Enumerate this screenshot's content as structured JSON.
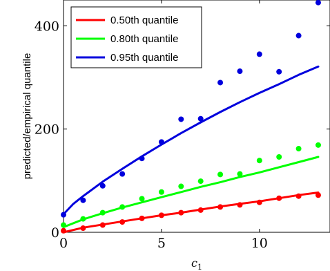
{
  "chart_data": {
    "type": "scatter",
    "xlabel": "c",
    "xlabel_sub": "1",
    "ylabel": "predicted/empirical quantile",
    "xlim": [
      0,
      13.6
    ],
    "ylim": [
      0,
      450
    ],
    "xticks": [
      0,
      5,
      10
    ],
    "yticks": [
      0,
      200,
      400
    ],
    "legend_position": "top-left",
    "grid": false,
    "series": [
      {
        "name": "0.50th quantile",
        "color": "#ff0000",
        "points_x": [
          0,
          1,
          2,
          3,
          4,
          5,
          6,
          7,
          8,
          9,
          10,
          11,
          12,
          13
        ],
        "points_y": [
          3,
          8,
          14,
          20,
          27,
          33,
          38,
          43,
          49,
          53,
          58,
          66,
          70,
          72
        ],
        "curve_x": [
          0,
          1,
          2,
          3,
          4,
          5,
          6,
          7,
          8,
          9,
          10,
          11,
          12,
          13
        ],
        "curve_y": [
          0,
          9,
          15,
          21,
          27,
          33,
          38,
          44,
          50,
          55,
          60,
          66,
          72,
          77
        ]
      },
      {
        "name": "0.80th quantile",
        "color": "#00ff00",
        "points_x": [
          0,
          1,
          2,
          3,
          4,
          5,
          6,
          7,
          8,
          9,
          10,
          11,
          12,
          13
        ],
        "points_y": [
          14,
          26,
          38,
          49,
          65,
          78,
          89,
          99,
          112,
          113,
          139,
          146,
          162,
          169
        ],
        "curve_x": [
          0,
          1,
          2,
          3,
          4,
          5,
          6,
          7,
          8,
          9,
          10,
          11,
          12,
          13
        ],
        "curve_y": [
          10,
          25,
          37,
          48,
          58,
          68,
          78,
          88,
          97,
          107,
          116,
          126,
          136,
          146
        ]
      },
      {
        "name": "0.95th quantile",
        "color": "#0000dd",
        "points_x": [
          0,
          1,
          2,
          3,
          4,
          5,
          6,
          7,
          8,
          9,
          10,
          11,
          12,
          13
        ],
        "points_y": [
          34,
          62,
          90,
          113,
          143,
          175,
          219,
          220,
          290,
          312,
          345,
          311,
          381,
          445
        ],
        "curve_x": [
          0,
          0.5,
          1,
          2,
          3,
          4,
          5,
          6,
          7,
          8,
          9,
          10,
          11,
          12,
          13
        ],
        "curve_y": [
          35,
          55,
          70,
          98,
          123,
          147,
          170,
          192,
          213,
          233,
          252,
          270,
          287,
          305,
          321
        ]
      }
    ]
  }
}
